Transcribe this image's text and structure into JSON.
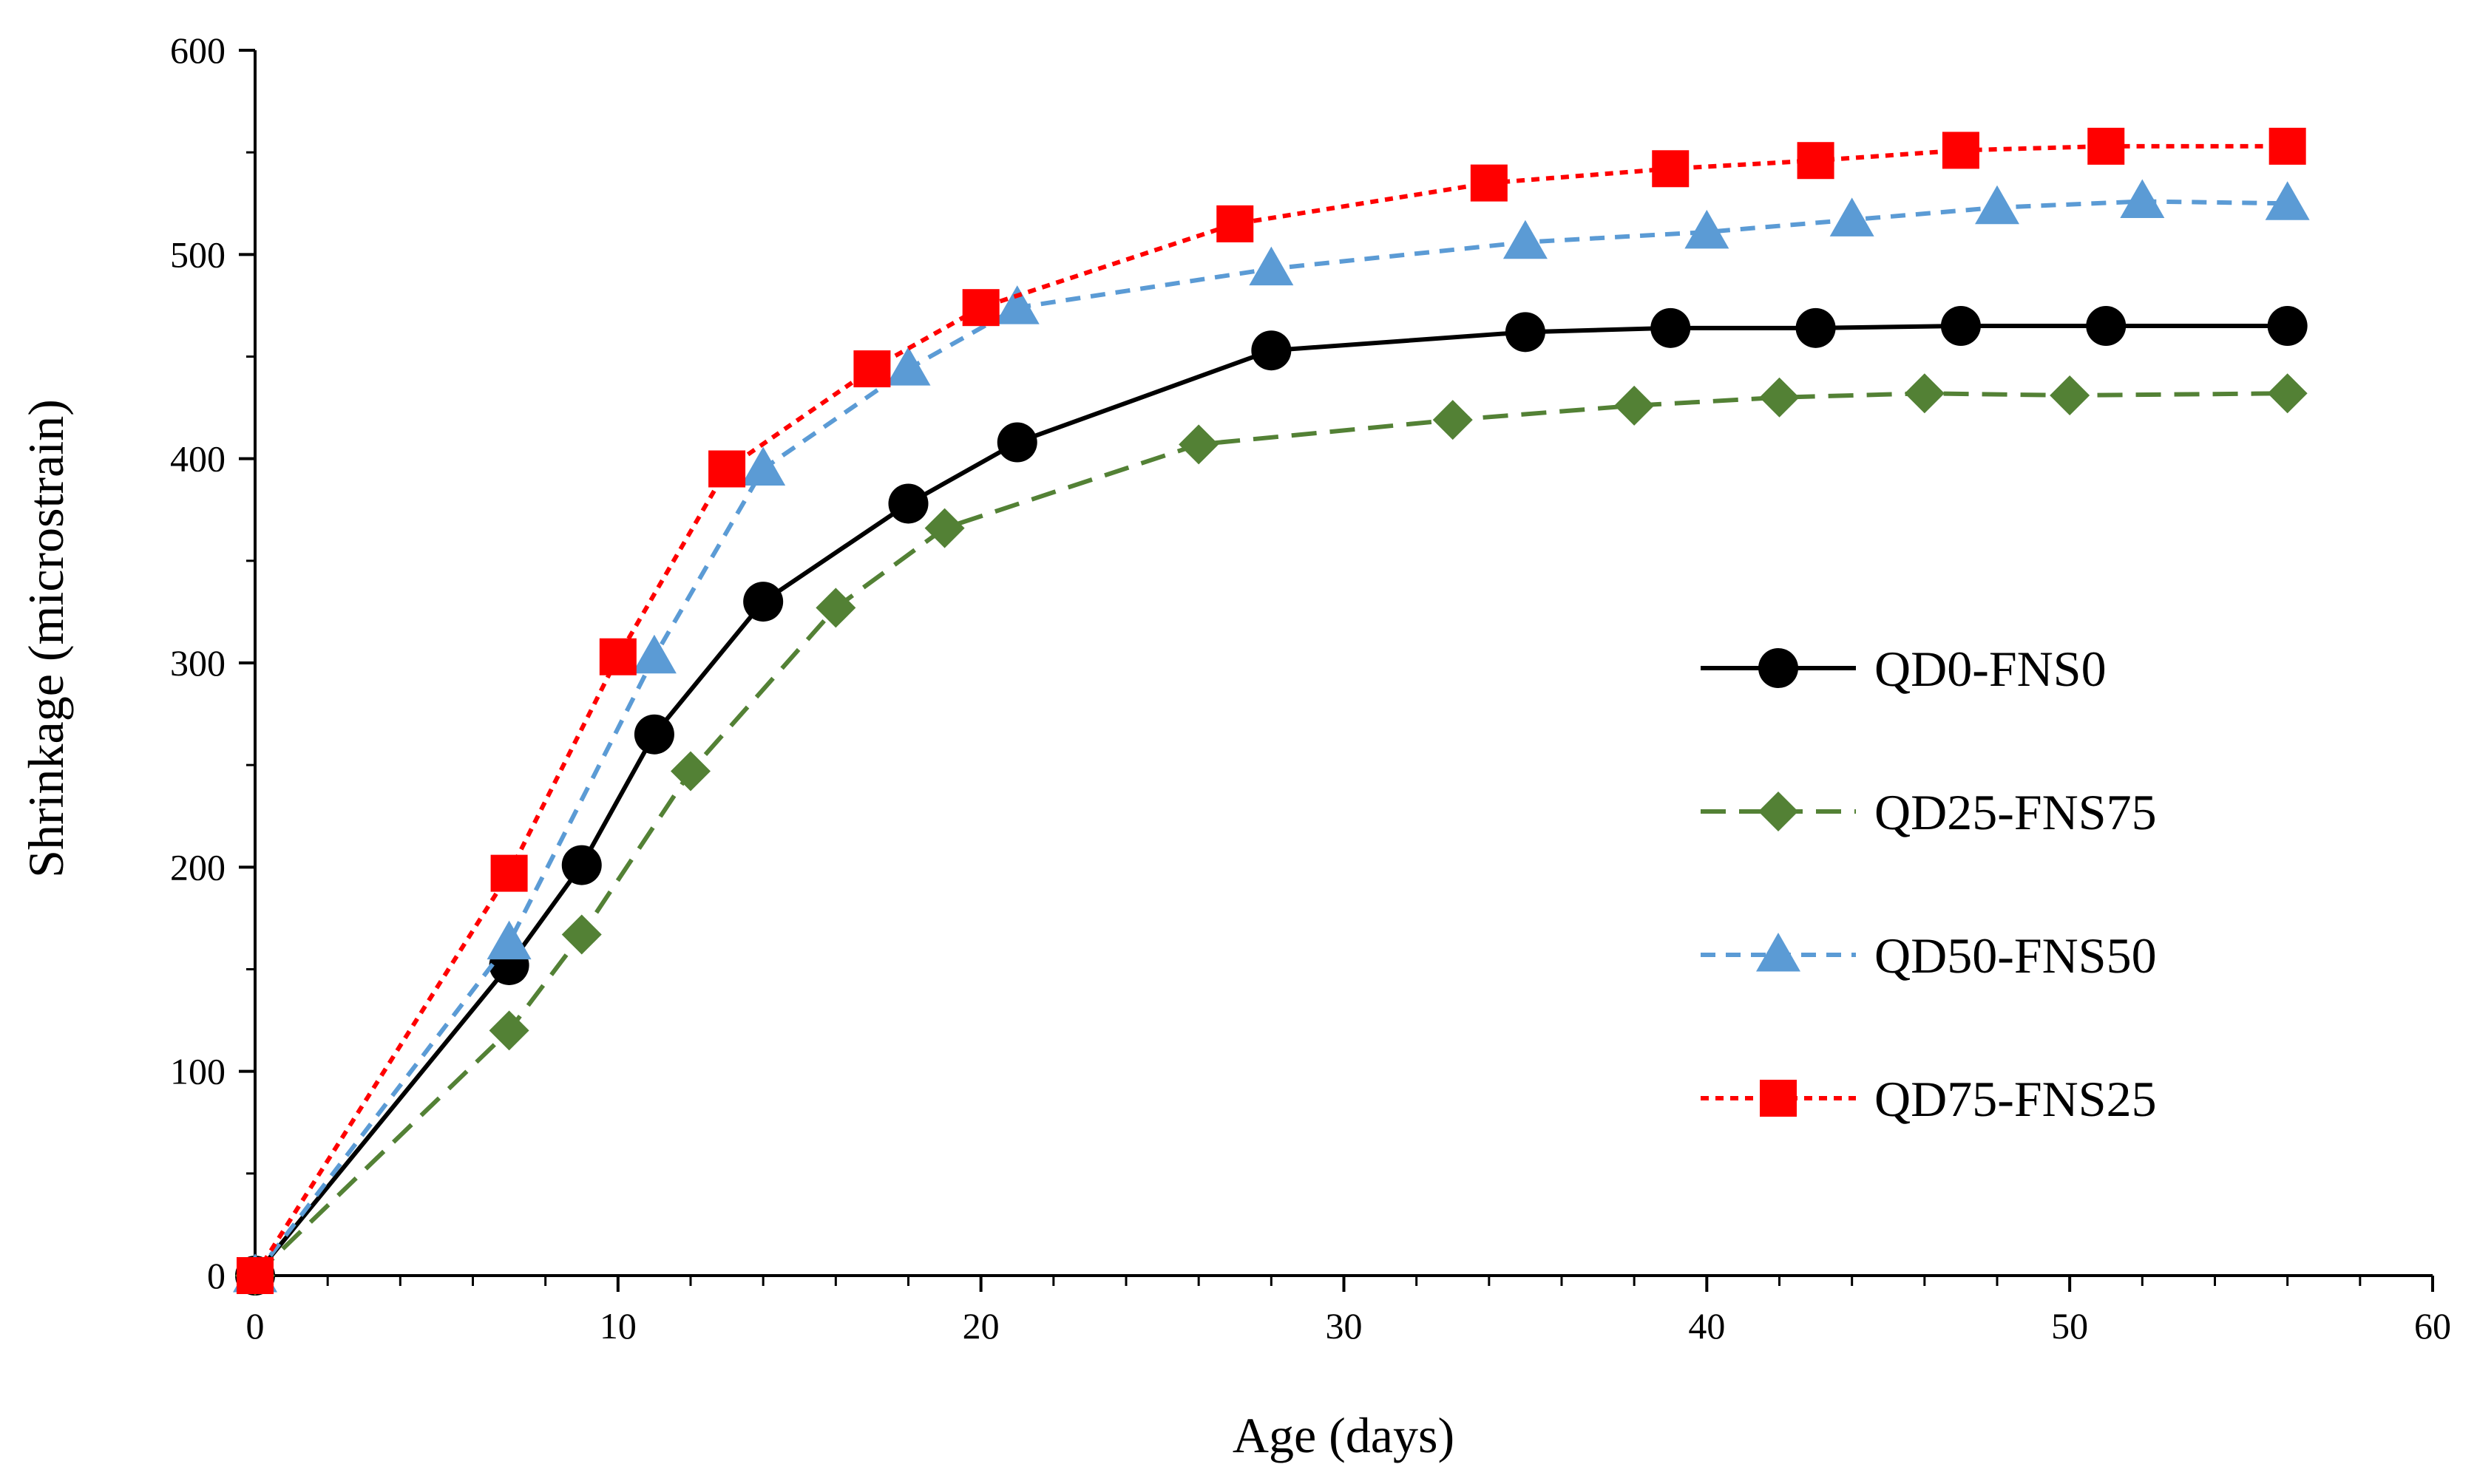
{
  "chart_data": {
    "type": "line",
    "title": "",
    "xlabel": "Age (days)",
    "ylabel": "Shrinkage (microstrain)",
    "xlim": [
      0,
      60
    ],
    "ylim": [
      0,
      600
    ],
    "xticks": [
      0,
      10,
      20,
      30,
      40,
      50,
      60
    ],
    "yticks": [
      0,
      100,
      200,
      300,
      400,
      500,
      600
    ],
    "grid": false,
    "legend_position": "right",
    "series": [
      {
        "name": "QD0-FNS0",
        "color": "#000000",
        "dash": "solid",
        "marker": "circle",
        "marker_color": "#000000",
        "x": [
          0,
          7,
          9,
          11,
          14,
          18,
          21,
          28,
          35,
          39,
          43,
          47,
          51,
          56
        ],
        "y": [
          0,
          152,
          201,
          265,
          330,
          378,
          408,
          453,
          462,
          464,
          464,
          465,
          465,
          465
        ]
      },
      {
        "name": "QD25-FNS75",
        "color": "#538135",
        "dash": "long-dash",
        "marker": "diamond",
        "marker_color": "#538135",
        "x": [
          0,
          7,
          9,
          12,
          16,
          19,
          26,
          33,
          38,
          42,
          46,
          50,
          56
        ],
        "y": [
          0,
          120,
          167,
          247,
          327,
          366,
          407,
          419,
          426,
          430,
          432,
          431,
          432
        ]
      },
      {
        "name": "QD50-FNS50",
        "color": "#5B9BD5",
        "dash": "dash",
        "marker": "triangle",
        "marker_color": "#5B9BD5",
        "x": [
          0,
          7,
          11,
          14,
          18,
          21,
          28,
          35,
          40,
          44,
          48,
          52,
          56
        ],
        "y": [
          0,
          163,
          303,
          395,
          444,
          474,
          493,
          506,
          511,
          517,
          523,
          526,
          525
        ]
      },
      {
        "name": "QD75-FNS25",
        "color": "#FF0000",
        "dash": "dot",
        "marker": "square",
        "marker_color": "#FF0000",
        "x": [
          0,
          7,
          10,
          13,
          17,
          20,
          27,
          34,
          39,
          43,
          47,
          51,
          56
        ],
        "y": [
          0,
          197,
          303,
          395,
          444,
          474,
          515,
          535,
          542,
          546,
          551,
          553,
          553
        ]
      }
    ]
  }
}
